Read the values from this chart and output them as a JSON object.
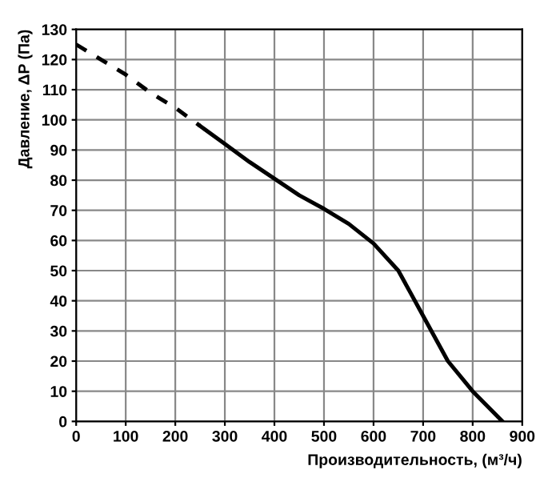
{
  "chart_data": {
    "type": "line",
    "xlabel": "Производительность, (м³/ч)",
    "ylabel": "Давление, ΔP (Па)",
    "series": [
      {
        "color": "#000000",
        "line_style": "dashed",
        "x": [
          0,
          50,
          100,
          150,
          200,
          250
        ],
        "values": [
          125,
          120,
          115,
          109,
          104,
          98
        ]
      },
      {
        "color": "#000000",
        "line_style": "solid",
        "x": [
          250,
          300,
          350,
          400,
          450,
          500,
          550,
          600,
          650,
          700,
          750,
          800,
          860
        ],
        "values": [
          98,
          92,
          86,
          80.5,
          75,
          70.5,
          65.5,
          59,
          50,
          35,
          20,
          10,
          0
        ]
      }
    ],
    "xlim": [
      0,
      900
    ],
    "xticks": [
      0,
      100,
      200,
      300,
      400,
      500,
      600,
      700,
      800,
      900
    ],
    "ylim": [
      0,
      130
    ],
    "yticks": [
      0,
      10,
      20,
      30,
      40,
      50,
      60,
      70,
      80,
      90,
      100,
      110,
      120,
      130
    ],
    "grid": true,
    "legend": false,
    "marker": "none"
  }
}
